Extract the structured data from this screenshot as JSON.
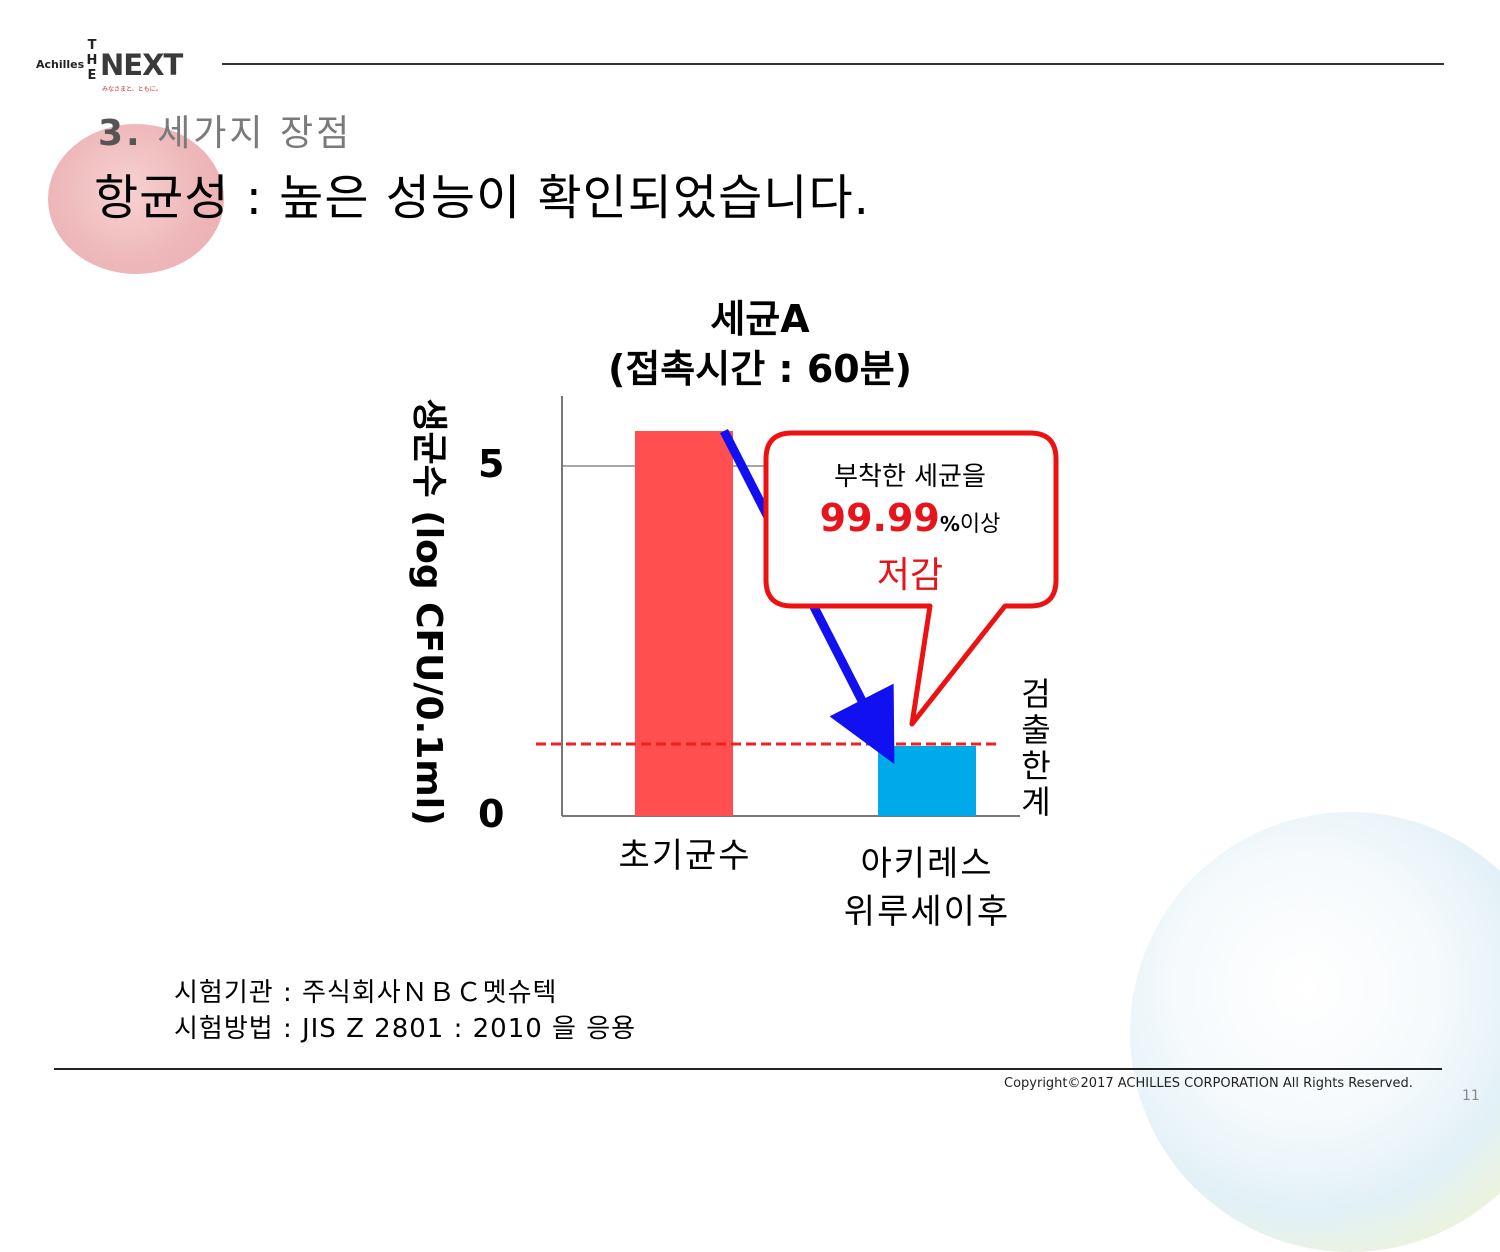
{
  "header": {
    "logo_brand": "Achilles",
    "logo_the": "THE",
    "logo_next": "NEXT",
    "logo_tagline": "みなさまと、ともに。",
    "section_number": "3.",
    "section_title": "세가지 장점",
    "headline": "항균성 : 높은 성능이 확인되었습니다."
  },
  "chart_data": {
    "type": "bar",
    "title_line1": "세균A",
    "title_line2": "(접촉시간 : 60분)",
    "ylabel": "생균수 (log CFU/0.1ml)",
    "categories": [
      "초기균수",
      "아키레스\n위루세이후"
    ],
    "category_labels": [
      [
        "초기균수"
      ],
      [
        "아키레스",
        "위루세이후"
      ]
    ],
    "values": [
      5.5,
      1.0
    ],
    "bar_colors": [
      "#ff4f4f",
      "#00a9ea"
    ],
    "ylim": [
      0,
      6.0
    ],
    "yticks": [
      0,
      5
    ],
    "gridlines": [
      5
    ],
    "detection_limit": 1.0,
    "detection_limit_label": "검출한계",
    "detection_limit_chars": [
      "검",
      "출",
      "한",
      "계"
    ],
    "annotation": {
      "line1": "부착한 세균을",
      "value": "99.99",
      "unit": "%",
      "suffix": "이상",
      "line3": "저감"
    },
    "colors": {
      "arrow": "#1010f0",
      "callout_border": "#ee1111",
      "detection_line": "#ee2020"
    }
  },
  "footnotes": {
    "line1": "시험기관 : 주식회사ＮＢＣ멧슈텍",
    "line2": "시험방법 : JIS Z 2801 : 2010 을 응용"
  },
  "footer": {
    "copyright": "Copyright©2017 ACHILLES CORPORATION All Rights Reserved.",
    "page_number": "11"
  }
}
